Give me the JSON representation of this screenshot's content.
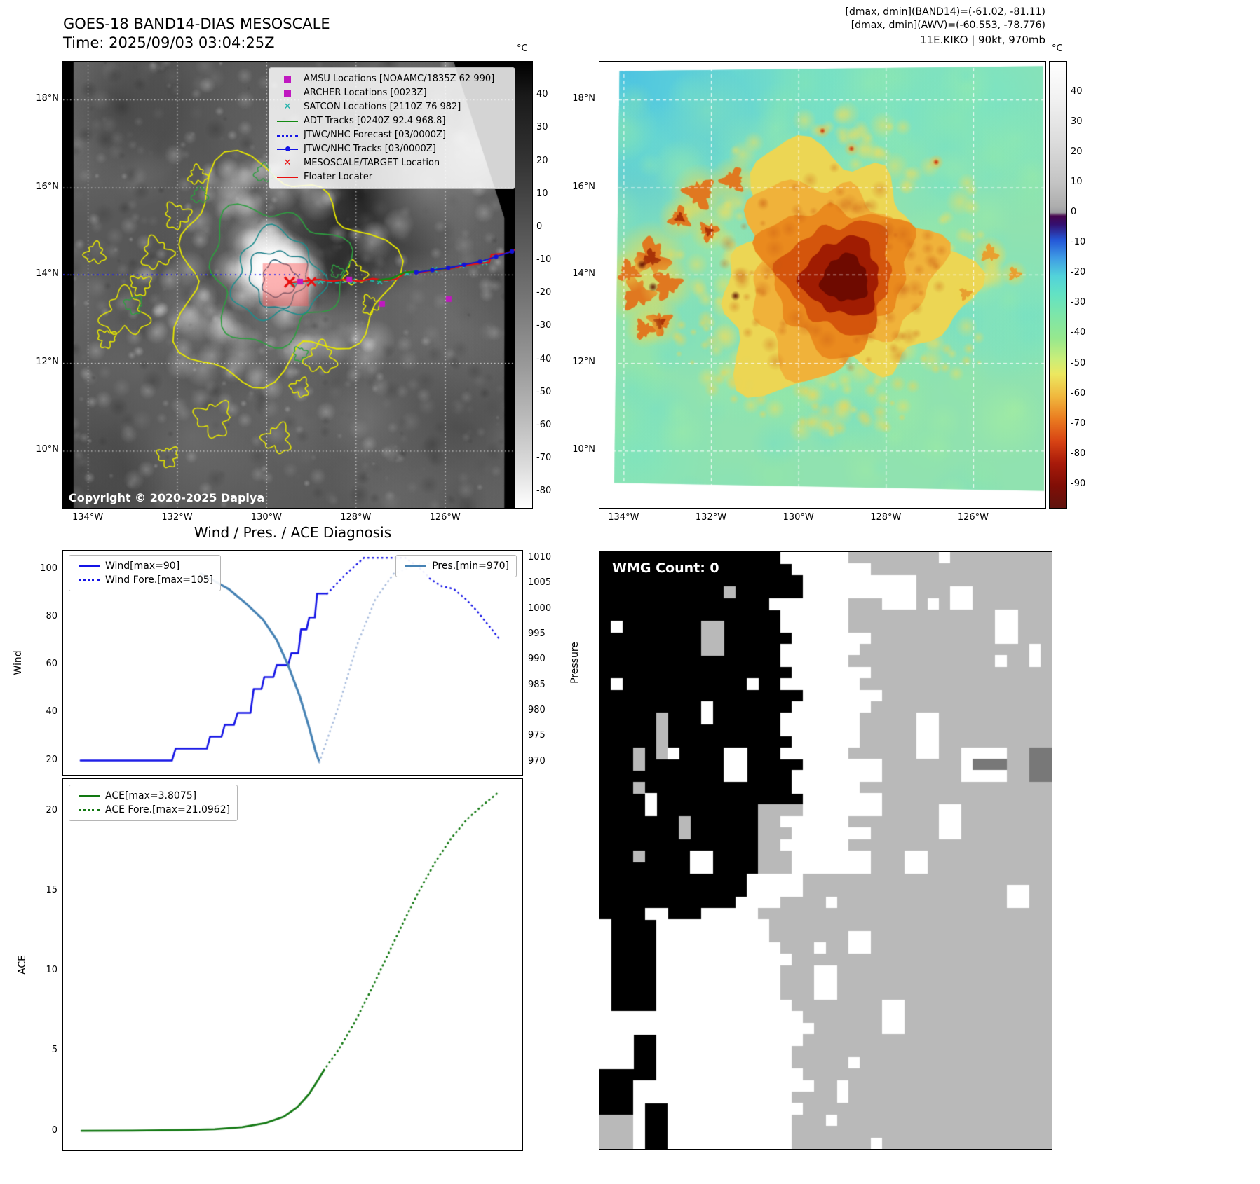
{
  "panel1": {
    "title": "GOES-18 BAND14-DIAS MESOSCALE",
    "subtitle": "Time: 2025/09/03 03:04:25Z",
    "copyright": "Copyright © 2020-2025 Dapiya",
    "colorbar": {
      "unit": "°C",
      "ticks": [
        "40",
        "30",
        "20",
        "10",
        "0",
        "-10",
        "-20",
        "-30",
        "-40",
        "-50",
        "-60",
        "-70",
        "-80"
      ]
    },
    "lat_ticks": [
      "18°N",
      "16°N",
      "14°N",
      "12°N",
      "10°N"
    ],
    "lon_ticks": [
      "134°W",
      "132°W",
      "130°W",
      "128°W",
      "126°W"
    ],
    "legend": [
      {
        "label": "AMSU Locations [NOAAMC/1835Z 62 990]",
        "marker": "square",
        "color": "#c018c0"
      },
      {
        "label": "ARCHER Locations [0023Z]",
        "marker": "square",
        "color": "#c018c0"
      },
      {
        "label": "SATCON Locations [2110Z 76 982]",
        "marker": "x",
        "color": "#20b2aa"
      },
      {
        "label": "ADT Tracks [0240Z 92.4 968.8]",
        "marker": "line",
        "color": "#128a12"
      },
      {
        "label": "JTWC/NHC Forecast [03/0000Z]",
        "marker": "dotted",
        "color": "#1414e6"
      },
      {
        "label": "JTWC/NHC Tracks [03/0000Z]",
        "marker": "line-dot",
        "color": "#1414e6"
      },
      {
        "label": "MESOSCALE/TARGET Location",
        "marker": "x",
        "color": "#e81010"
      },
      {
        "label": "Floater Locater",
        "marker": "line",
        "color": "#e81010"
      }
    ]
  },
  "panel2": {
    "info_lines": [
      "[dmax, dmin](BAND14)=(-61.02, -81.11)",
      "[dmax, dmin](AWV)=(-60.553, -78.776)",
      "11E.KIKO | 90kt, 970mb"
    ],
    "colorbar": {
      "unit": "°C",
      "ticks": [
        "40",
        "30",
        "20",
        "10",
        "0",
        "-10",
        "-20",
        "-30",
        "-40",
        "-50",
        "-60",
        "-70",
        "-80",
        "-90"
      ]
    },
    "lat_ticks": [
      "18°N",
      "16°N",
      "14°N",
      "12°N",
      "10°N"
    ],
    "lon_ticks": [
      "134°W",
      "132°W",
      "130°W",
      "128°W",
      "126°W"
    ]
  },
  "diagnosis": {
    "title": "Wind / Pres. / ACE Diagnosis",
    "legends": {
      "wind_pressure_left": [
        "Wind[max=90]",
        "Wind Fore.[max=105]"
      ],
      "wind_pressure_right": [
        "Pres.[min=970]"
      ],
      "ace": [
        "ACE[max=3.8075]",
        "ACE Fore.[max=21.0962]"
      ]
    }
  },
  "wmg": {
    "label": "WMG Count: 0"
  },
  "chart_data": [
    {
      "type": "line",
      "title": "Wind / Pres. / ACE Diagnosis",
      "panel": "wind-pressure",
      "x_range": [
        0,
        1
      ],
      "axes": {
        "left": {
          "label": "Wind",
          "lim": [
            14,
            108
          ],
          "ticks": [
            20,
            40,
            60,
            80,
            100
          ]
        },
        "right": {
          "label": "Pressure",
          "lim": [
            967.5,
            1011.5
          ],
          "ticks": [
            970,
            975,
            980,
            985,
            990,
            995,
            1000,
            1005,
            1010
          ]
        }
      },
      "series": [
        {
          "name": "Wind[max=90]",
          "axis": "left",
          "style": "solid",
          "color": "#1414e6",
          "width": 2.6,
          "x": [
            0.038,
            0.237,
            0.245,
            0.313,
            0.32,
            0.345,
            0.352,
            0.372,
            0.38,
            0.408,
            0.415,
            0.432,
            0.438,
            0.458,
            0.465,
            0.49,
            0.497,
            0.512,
            0.518,
            0.53,
            0.536,
            0.548,
            0.553,
            0.575
          ],
          "y": [
            20,
            20,
            25,
            25,
            30,
            30,
            35,
            35,
            40,
            40,
            50,
            50,
            55,
            55,
            60,
            60,
            65,
            65,
            75,
            75,
            80,
            80,
            90,
            90
          ]
        },
        {
          "name": "Wind Fore.[max=105]",
          "axis": "left",
          "style": "dotted",
          "color": "#1414e6",
          "width": 2.6,
          "x": [
            0.575,
            0.615,
            0.655,
            0.7,
            0.745,
            0.775,
            0.8,
            0.825,
            0.85,
            0.875,
            0.9,
            0.925,
            0.95
          ],
          "y": [
            90,
            98,
            105,
            105,
            105,
            101,
            96,
            93,
            92,
            88,
            83,
            77,
            71
          ]
        },
        {
          "name": "Pres.[min=970]",
          "axis": "right",
          "style": "solid",
          "color": "#4682b4",
          "width": 3.2,
          "x": [
            0.3,
            0.36,
            0.4,
            0.435,
            0.465,
            0.49,
            0.515,
            0.535,
            0.55,
            0.558
          ],
          "y": [
            1007,
            1004,
            1001,
            998,
            994,
            989,
            983,
            977,
            972,
            970
          ]
        },
        {
          "name": "Pres. Fore.",
          "axis": "right",
          "style": "dotted",
          "color": "#a9bddd",
          "width": 2.6,
          "x": [
            0.558,
            0.6,
            0.64,
            0.68,
            0.72,
            0.78,
            0.85,
            0.92,
            0.955
          ],
          "y": [
            970,
            981,
            993,
            1002,
            1007,
            1009,
            1009,
            1008,
            1008
          ]
        }
      ]
    },
    {
      "type": "line",
      "panel": "ace",
      "x_range": [
        0,
        1
      ],
      "axes": {
        "left": {
          "label": "ACE",
          "lim": [
            -1.2,
            22
          ],
          "ticks": [
            0,
            5,
            10,
            15,
            20
          ]
        }
      },
      "series": [
        {
          "name": "ACE[max=3.8075]",
          "axis": "left",
          "style": "solid",
          "color": "#127812",
          "width": 2.8,
          "x": [
            0.04,
            0.15,
            0.25,
            0.33,
            0.39,
            0.44,
            0.48,
            0.51,
            0.535,
            0.555,
            0.568
          ],
          "y": [
            0.02,
            0.03,
            0.06,
            0.12,
            0.25,
            0.5,
            0.9,
            1.5,
            2.3,
            3.2,
            3.81
          ]
        },
        {
          "name": "ACE Fore.[max=21.0962]",
          "axis": "left",
          "style": "dotted",
          "color": "#127812",
          "width": 2.8,
          "x": [
            0.568,
            0.6,
            0.635,
            0.67,
            0.705,
            0.74,
            0.775,
            0.81,
            0.845,
            0.88,
            0.915,
            0.945
          ],
          "y": [
            3.81,
            5.1,
            6.8,
            8.8,
            10.9,
            13.0,
            15.0,
            16.8,
            18.3,
            19.5,
            20.4,
            21.1
          ]
        }
      ]
    }
  ]
}
